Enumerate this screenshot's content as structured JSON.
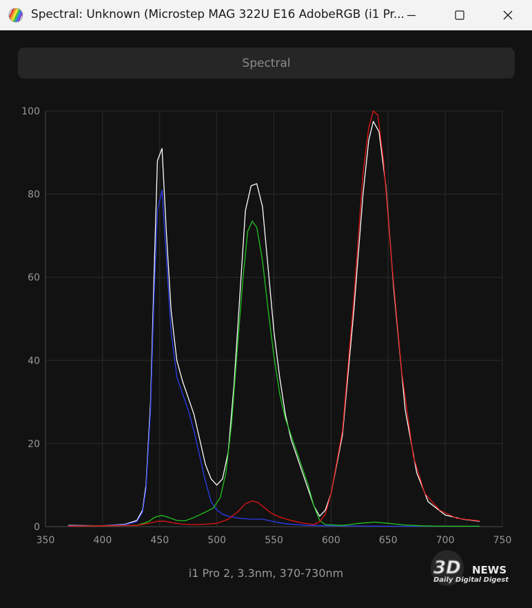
{
  "window": {
    "title": "Spectral: Unknown (Microstep MAG 322U E16 AdobeRGB (i1 Pr...",
    "icons": {
      "app": "color-palette-icon",
      "minimize": "minimize-icon",
      "maximize": "maximize-icon",
      "close": "close-icon"
    }
  },
  "tab": {
    "label": "Spectral"
  },
  "footer": {
    "caption": "i1 Pro 2, 3.3nm, 370-730nm"
  },
  "watermark": {
    "brand": "3DNEWS",
    "tagline": "Daily Digital Digest"
  },
  "chart_data": {
    "type": "line",
    "xlim": [
      350,
      750
    ],
    "ylim": [
      0,
      100
    ],
    "x_ticks": [
      350,
      400,
      450,
      500,
      550,
      600,
      650,
      700,
      750
    ],
    "y_ticks": [
      0,
      20,
      40,
      60,
      80,
      100
    ],
    "grid": true,
    "series": [
      {
        "color": "#ffffff",
        "points": [
          [
            370,
            0.3
          ],
          [
            400,
            0.2
          ],
          [
            420,
            0.6
          ],
          [
            430,
            1.5
          ],
          [
            435,
            4
          ],
          [
            438,
            10
          ],
          [
            442,
            30
          ],
          [
            445,
            60
          ],
          [
            448,
            88
          ],
          [
            452,
            91
          ],
          [
            456,
            70
          ],
          [
            460,
            52
          ],
          [
            465,
            40
          ],
          [
            470,
            35
          ],
          [
            475,
            31
          ],
          [
            480,
            27
          ],
          [
            485,
            21
          ],
          [
            490,
            15
          ],
          [
            495,
            11.5
          ],
          [
            500,
            10
          ],
          [
            505,
            11.5
          ],
          [
            510,
            18
          ],
          [
            515,
            34
          ],
          [
            520,
            55
          ],
          [
            525,
            76
          ],
          [
            530,
            82
          ],
          [
            535,
            82.5
          ],
          [
            540,
            77
          ],
          [
            545,
            62
          ],
          [
            550,
            47
          ],
          [
            555,
            36
          ],
          [
            560,
            27
          ],
          [
            565,
            21
          ],
          [
            570,
            17
          ],
          [
            575,
            13
          ],
          [
            580,
            9
          ],
          [
            585,
            5
          ],
          [
            590,
            2.5
          ],
          [
            595,
            4
          ],
          [
            600,
            8
          ],
          [
            610,
            22
          ],
          [
            620,
            52
          ],
          [
            628,
            80
          ],
          [
            633,
            93
          ],
          [
            637,
            97.5
          ],
          [
            642,
            95
          ],
          [
            648,
            82
          ],
          [
            655,
            57
          ],
          [
            665,
            28
          ],
          [
            675,
            13
          ],
          [
            685,
            6
          ],
          [
            700,
            2.8
          ],
          [
            715,
            1.8
          ],
          [
            730,
            1.3
          ]
        ]
      },
      {
        "color": "#2b3cf0",
        "points": [
          [
            370,
            0.2
          ],
          [
            400,
            0.2
          ],
          [
            420,
            0.5
          ],
          [
            430,
            1.2
          ],
          [
            435,
            3.5
          ],
          [
            438,
            9
          ],
          [
            442,
            28
          ],
          [
            445,
            55
          ],
          [
            448,
            76
          ],
          [
            452,
            81
          ],
          [
            456,
            64
          ],
          [
            460,
            47
          ],
          [
            465,
            36
          ],
          [
            470,
            32
          ],
          [
            475,
            28
          ],
          [
            480,
            23
          ],
          [
            485,
            17
          ],
          [
            490,
            11
          ],
          [
            495,
            6
          ],
          [
            500,
            4
          ],
          [
            505,
            3
          ],
          [
            510,
            2.5
          ],
          [
            520,
            2
          ],
          [
            530,
            1.8
          ],
          [
            540,
            1.8
          ],
          [
            550,
            1.2
          ],
          [
            560,
            0.7
          ],
          [
            580,
            0.3
          ],
          [
            600,
            0.2
          ],
          [
            650,
            0.1
          ],
          [
            700,
            0.1
          ],
          [
            730,
            0.1
          ]
        ]
      },
      {
        "color": "#1fc51f",
        "points": [
          [
            370,
            0.1
          ],
          [
            430,
            0.3
          ],
          [
            440,
            1.2
          ],
          [
            446,
            2.3
          ],
          [
            452,
            2.7
          ],
          [
            458,
            2.2
          ],
          [
            465,
            1.5
          ],
          [
            472,
            1.4
          ],
          [
            480,
            2.2
          ],
          [
            490,
            3.5
          ],
          [
            497,
            4.5
          ],
          [
            503,
            7
          ],
          [
            508,
            13
          ],
          [
            513,
            25
          ],
          [
            518,
            43
          ],
          [
            523,
            60
          ],
          [
            527,
            71
          ],
          [
            531,
            73.5
          ],
          [
            535,
            72
          ],
          [
            540,
            64
          ],
          [
            545,
            52
          ],
          [
            550,
            41
          ],
          [
            555,
            32
          ],
          [
            560,
            26
          ],
          [
            565,
            22
          ],
          [
            570,
            18
          ],
          [
            575,
            14
          ],
          [
            580,
            10
          ],
          [
            585,
            5
          ],
          [
            590,
            1.5
          ],
          [
            595,
            0.5
          ],
          [
            610,
            0.3
          ],
          [
            625,
            0.8
          ],
          [
            638,
            1.1
          ],
          [
            650,
            0.8
          ],
          [
            665,
            0.4
          ],
          [
            680,
            0.2
          ],
          [
            700,
            0.1
          ],
          [
            730,
            0.1
          ]
        ]
      },
      {
        "color": "#e81414",
        "points": [
          [
            370,
            0.1
          ],
          [
            430,
            0.3
          ],
          [
            440,
            0.8
          ],
          [
            448,
            1.3
          ],
          [
            455,
            1.3
          ],
          [
            462,
            0.9
          ],
          [
            470,
            0.6
          ],
          [
            480,
            0.5
          ],
          [
            490,
            0.6
          ],
          [
            500,
            0.8
          ],
          [
            510,
            1.8
          ],
          [
            518,
            3.5
          ],
          [
            525,
            5.5
          ],
          [
            531,
            6.2
          ],
          [
            536,
            5.8
          ],
          [
            542,
            4.5
          ],
          [
            548,
            3.2
          ],
          [
            555,
            2.3
          ],
          [
            565,
            1.5
          ],
          [
            575,
            0.9
          ],
          [
            585,
            0.5
          ],
          [
            590,
            1.2
          ],
          [
            595,
            3
          ],
          [
            600,
            8
          ],
          [
            610,
            23
          ],
          [
            620,
            55
          ],
          [
            628,
            85
          ],
          [
            633,
            96
          ],
          [
            637,
            100
          ],
          [
            641,
            99
          ],
          [
            646,
            88
          ],
          [
            653,
            64
          ],
          [
            662,
            37
          ],
          [
            672,
            17
          ],
          [
            682,
            8
          ],
          [
            695,
            4
          ],
          [
            710,
            2
          ],
          [
            730,
            1.4
          ]
        ]
      }
    ]
  }
}
